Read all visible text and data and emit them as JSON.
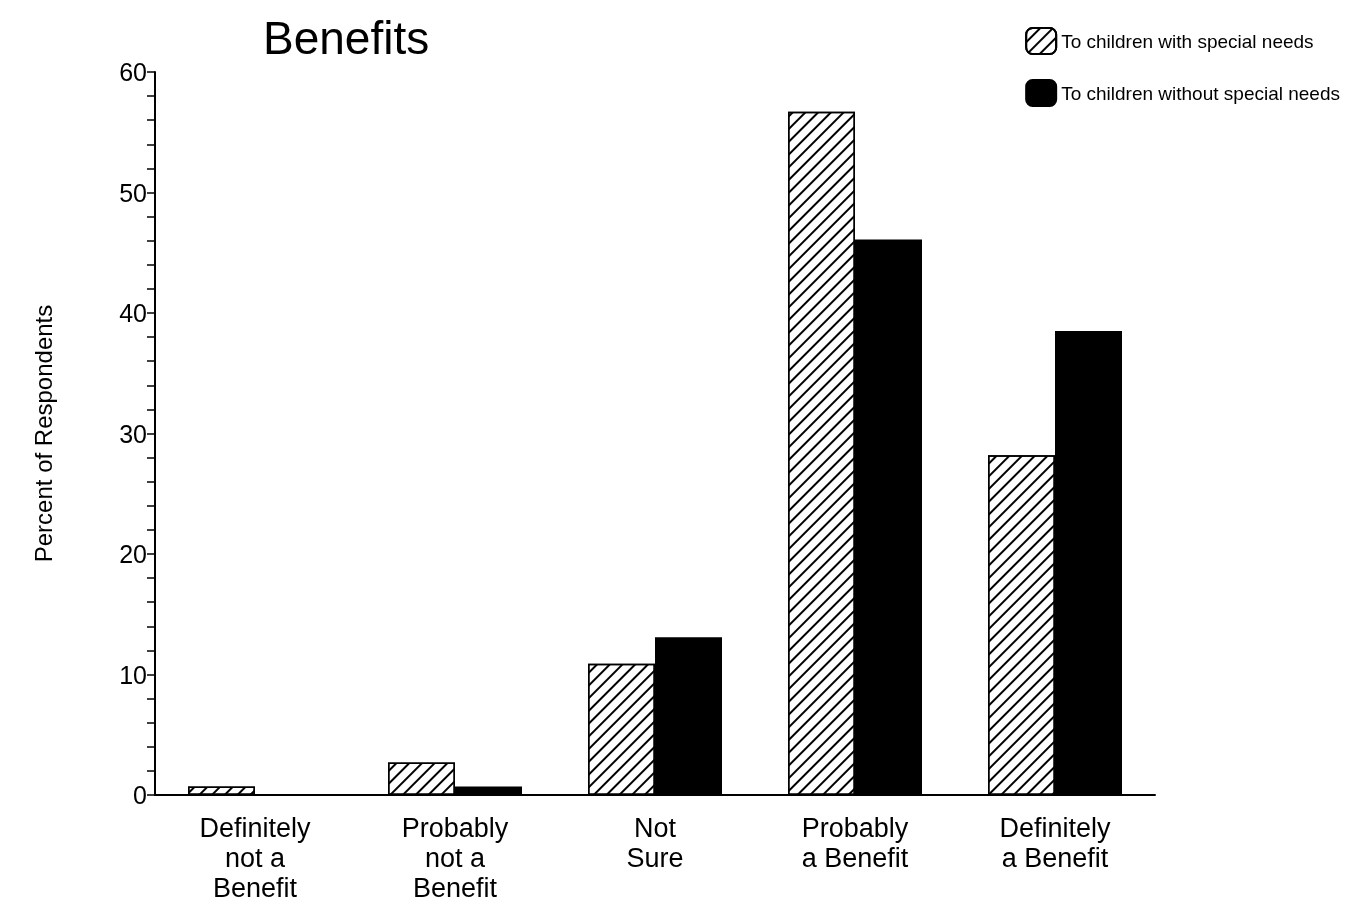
{
  "chart_data": {
    "type": "bar",
    "title": "Benefits",
    "ylabel": "Percent of Respondents",
    "categories": [
      "Definitely\nnot a\nBenefit",
      "Probably\nnot a\nBenefit",
      "Not\nSure",
      "Probably\na Benefit",
      "Definitely\na Benefit"
    ],
    "series": [
      {
        "name": "To children with special needs",
        "color": "#ffffff",
        "values": [
          0.7,
          2.7,
          10.9,
          56.7,
          28.2
        ]
      },
      {
        "name": "To children without special needs",
        "color": "#000000",
        "values": [
          0,
          0.7,
          13.1,
          46.1,
          38.5
        ]
      }
    ],
    "ylim": [
      0,
      60
    ],
    "yticks": [
      0,
      {
        "value": 2,
        "label": null
      },
      {
        "value": 4,
        "label": null
      },
      {
        "value": 6,
        "label": null
      },
      {
        "value": 8,
        "label": null
      },
      10,
      {
        "value": 12,
        "label": null
      },
      {
        "value": 14,
        "label": null
      },
      {
        "value": 16,
        "label": null
      },
      {
        "value": 18,
        "label": null
      },
      20,
      {
        "value": 22,
        "label": null
      },
      {
        "value": 24,
        "label": null
      },
      {
        "value": 26,
        "label": null
      },
      {
        "value": 28,
        "label": null
      },
      30,
      {
        "value": 32,
        "label": null
      },
      {
        "value": 34,
        "label": null
      },
      {
        "value": 36,
        "label": null
      },
      {
        "value": 38,
        "label": null
      },
      40,
      {
        "value": 42,
        "label": null
      },
      {
        "value": 44,
        "label": null
      },
      {
        "value": 46,
        "label": null
      },
      {
        "value": 48,
        "label": null
      },
      50,
      {
        "value": 52,
        "label": null
      },
      {
        "value": 54,
        "label": null
      },
      {
        "value": 56,
        "label": null
      },
      {
        "value": 58,
        "label": null
      },
      60
    ],
    "grid": false,
    "legend": "top right"
  }
}
